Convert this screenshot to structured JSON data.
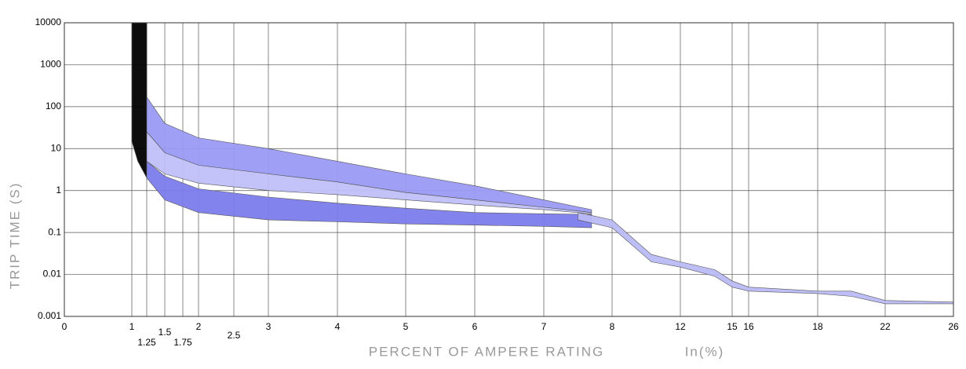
{
  "chart_data": {
    "type": "band",
    "ylabel": "TRIP TIME   (S)",
    "xlabel": "PERCENT OF AMPERE RATING",
    "xunit": "In(%)",
    "log_y": true,
    "grid": true,
    "ylim": [
      0.001,
      10000
    ],
    "yticks": [
      0.001,
      0.01,
      0.1,
      1,
      10,
      100,
      1000,
      10000
    ],
    "xlim": [
      0,
      26
    ],
    "xticks": [
      0,
      1,
      1.25,
      1.5,
      1.75,
      2,
      2.5,
      3,
      4,
      5,
      6,
      7,
      8,
      12,
      15,
      16,
      18,
      22,
      26
    ],
    "series": [
      {
        "color": "#000000",
        "x": [
          1,
          1.1,
          1.25
        ],
        "upper": [
          10000,
          10000,
          10000
        ],
        "lower": [
          15,
          5,
          2
        ]
      },
      {
        "color": "#9a9af5",
        "x": [
          1.25,
          1.5,
          2,
          3,
          4,
          5,
          6,
          7,
          7.7
        ],
        "upper": [
          170,
          40,
          18,
          10,
          5,
          2.5,
          1.3,
          0.6,
          0.35
        ],
        "lower": [
          25,
          8,
          4,
          2.5,
          1.6,
          0.9,
          0.6,
          0.4,
          0.3
        ]
      },
      {
        "color": "#c0c0fa",
        "x": [
          1.25,
          1.5,
          2,
          3,
          4,
          5,
          6,
          7,
          7.7
        ],
        "upper": [
          25,
          8,
          4,
          2.5,
          1.6,
          0.9,
          0.6,
          0.4,
          0.3
        ],
        "lower": [
          5,
          2.5,
          1.5,
          1,
          0.8,
          0.6,
          0.45,
          0.35,
          0.28
        ]
      },
      {
        "color": "#7c7cec",
        "x": [
          1.25,
          1.5,
          2,
          3,
          4,
          5,
          6,
          7,
          7.7
        ],
        "upper": [
          5,
          2.2,
          1.1,
          0.7,
          0.5,
          0.38,
          0.3,
          0.28,
          0.27
        ],
        "lower": [
          2,
          0.6,
          0.3,
          0.2,
          0.18,
          0.16,
          0.15,
          0.14,
          0.13
        ]
      },
      {
        "color": "#babaf7",
        "x": [
          7.5,
          8,
          10.3,
          12,
          14,
          15,
          16,
          18,
          20,
          22,
          26
        ],
        "upper": [
          0.3,
          0.2,
          0.03,
          0.02,
          0.013,
          0.007,
          0.005,
          0.004,
          0.004,
          0.0024,
          0.0022
        ],
        "lower": [
          0.2,
          0.13,
          0.02,
          0.015,
          0.009,
          0.005,
          0.004,
          0.0035,
          0.003,
          0.002,
          0.002
        ]
      }
    ]
  }
}
